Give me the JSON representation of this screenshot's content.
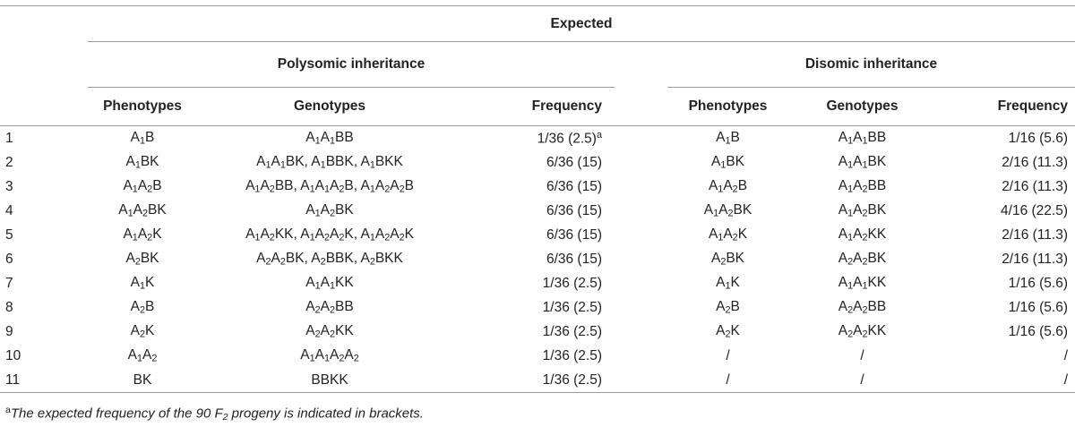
{
  "header": {
    "expected": "Expected",
    "polysomic": "Polysomic inheritance",
    "disomic": "Disomic inheritance",
    "columns": {
      "phenotypes": "Phenotypes",
      "genotypes": "Genotypes",
      "frequency": "Frequency"
    },
    "footnote_marker": "a"
  },
  "rows": [
    {
      "num": "1",
      "poly_pheno": "A1B",
      "poly_geno": "A1A1BB",
      "poly_freq": "1/36 (2.5)",
      "poly_freq_note": "a",
      "di_pheno": "A1B",
      "di_geno": "A1A1BB",
      "di_freq": "1/16 (5.6)"
    },
    {
      "num": "2",
      "poly_pheno": "A1BK",
      "poly_geno": "A1A1BK, A1BBK, A1BKK",
      "poly_freq": "6/36 (15)",
      "poly_freq_note": "",
      "di_pheno": "A1BK",
      "di_geno": "A1A1BK",
      "di_freq": "2/16 (11.3)"
    },
    {
      "num": "3",
      "poly_pheno": "A1A2B",
      "poly_geno": "A1A2BB, A1A1A2B, A1A2A2B",
      "poly_freq": "6/36 (15)",
      "poly_freq_note": "",
      "di_pheno": "A1A2B",
      "di_geno": "A1A2BB",
      "di_freq": "2/16 (11.3)"
    },
    {
      "num": "4",
      "poly_pheno": "A1A2BK",
      "poly_geno": "A1A2BK",
      "poly_freq": "6/36 (15)",
      "poly_freq_note": "",
      "di_pheno": "A1A2BK",
      "di_geno": "A1A2BK",
      "di_freq": "4/16 (22.5)"
    },
    {
      "num": "5",
      "poly_pheno": "A1A2K",
      "poly_geno": "A1A2KK, A1A2A2K, A1A2A2K",
      "poly_freq": "6/36 (15)",
      "poly_freq_note": "",
      "di_pheno": "A1A2K",
      "di_geno": "A1A2KK",
      "di_freq": "2/16 (11.3)"
    },
    {
      "num": "6",
      "poly_pheno": "A2BK",
      "poly_geno": "A2A2BK, A2BBK, A2BKK",
      "poly_freq": "6/36 (15)",
      "poly_freq_note": "",
      "di_pheno": "A2BK",
      "di_geno": "A2A2BK",
      "di_freq": "2/16 (11.3)"
    },
    {
      "num": "7",
      "poly_pheno": "A1K",
      "poly_geno": "A1A1KK",
      "poly_freq": "1/36 (2.5)",
      "poly_freq_note": "",
      "di_pheno": "A1K",
      "di_geno": "A1A1KK",
      "di_freq": "1/16 (5.6)"
    },
    {
      "num": "8",
      "poly_pheno": "A2B",
      "poly_geno": "A2A2BB",
      "poly_freq": "1/36 (2.5)",
      "poly_freq_note": "",
      "di_pheno": "A2B",
      "di_geno": "A2A2BB",
      "di_freq": "1/16 (5.6)"
    },
    {
      "num": "9",
      "poly_pheno": "A2K",
      "poly_geno": "A2A2KK",
      "poly_freq": "1/36 (2.5)",
      "poly_freq_note": "",
      "di_pheno": "A2K",
      "di_geno": "A2A2KK",
      "di_freq": "1/16 (5.6)"
    },
    {
      "num": "10",
      "poly_pheno": "A1A2",
      "poly_geno": "A1A1A2A2",
      "poly_freq": "1/36 (2.5)",
      "poly_freq_note": "",
      "di_pheno": "/",
      "di_geno": "/",
      "di_freq": "/"
    },
    {
      "num": "11",
      "poly_pheno": "BK",
      "poly_geno": "BBKK",
      "poly_freq": "1/36 (2.5)",
      "poly_freq_note": "",
      "di_pheno": "/",
      "di_geno": "/",
      "di_freq": "/"
    }
  ],
  "footnote": {
    "marker": "a",
    "text_before": "The expected frequency of the 90 F",
    "text_sub": "2",
    "text_after": " progeny is indicated in brackets."
  }
}
